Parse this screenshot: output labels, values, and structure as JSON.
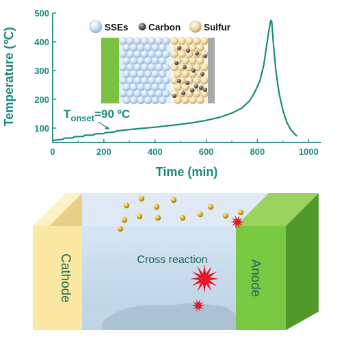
{
  "chart_data": {
    "type": "line",
    "xlabel": "Time (min)",
    "ylabel": "Temperature (℃)",
    "xlim": [
      0,
      1050
    ],
    "ylim": [
      50,
      500
    ],
    "x_ticks": [
      "0",
      "200",
      "400",
      "600",
      "800",
      "1000"
    ],
    "y_ticks": [
      "100",
      "200",
      "300",
      "400",
      "500"
    ],
    "line_color": "#1a8a7a",
    "series": [
      {
        "x": [
          0,
          20,
          40,
          45,
          80,
          85,
          120,
          125,
          160,
          165,
          200,
          205,
          240,
          250,
          300,
          350,
          400,
          450,
          500,
          550,
          600,
          650,
          700,
          740,
          770,
          790,
          810,
          825,
          835,
          845,
          852,
          856,
          862,
          872,
          885,
          900,
          915,
          930,
          945,
          955
        ],
        "y": [
          57,
          59,
          61,
          65,
          66,
          70,
          71,
          75,
          76,
          80,
          81,
          84,
          86,
          90,
          95,
          99,
          103,
          108,
          113,
          119,
          127,
          137,
          152,
          170,
          195,
          225,
          265,
          320,
          380,
          440,
          475,
          470,
          400,
          300,
          220,
          160,
          120,
          95,
          80,
          72
        ],
        "values": [
          57,
          59,
          61,
          65,
          66,
          70,
          71,
          75,
          76,
          80,
          81,
          84,
          86,
          90,
          95,
          99,
          103,
          108,
          113,
          119,
          127,
          137,
          152,
          170,
          195,
          225,
          265,
          320,
          380,
          440,
          475,
          470,
          400,
          300,
          220,
          160,
          120,
          95,
          80,
          72
        ]
      }
    ],
    "annotation": {
      "main": "T",
      "sub": "onset",
      "rest": "=90 ºC",
      "x": 255,
      "y": 90
    }
  },
  "inset": {
    "legend": [
      {
        "label": "SSEs",
        "color": "#b7d5f0",
        "icon": "sse-sphere-icon"
      },
      {
        "label": "Carbon",
        "color": "#555555",
        "icon": "carbon-sphere-icon"
      },
      {
        "label": "Sulfur",
        "color": "#ead29a",
        "icon": "sulfur-sphere-icon"
      }
    ]
  },
  "diagram": {
    "cathode_label": "Cathode",
    "anode_label": "Anode",
    "reaction_label": "Cross reaction",
    "colors": {
      "cathode": "#fbe9a3",
      "anode": "#7ac943",
      "electrolyte": "#bcd3e6",
      "gold": "#e0b028",
      "burst": "#e8172b"
    }
  }
}
